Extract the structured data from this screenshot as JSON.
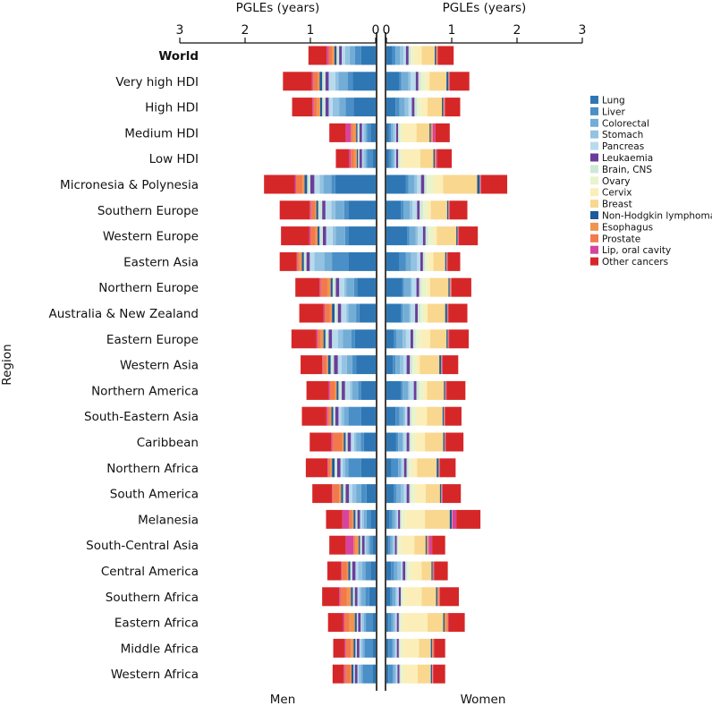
{
  "chart_data": {
    "type": "bar",
    "orientation": "horizontal",
    "stacked": true,
    "layout": "back-to-back",
    "top_axis_title": "PGLEs (years)",
    "ylabel": "Region",
    "panel_labels": {
      "men": "Men",
      "women": "Women"
    },
    "xlim": [
      0,
      3
    ],
    "ticks": [
      0,
      1,
      2,
      3
    ],
    "legend_position": "right",
    "categories": [
      "World",
      "Very high HDI",
      "High HDI",
      "Medium HDI",
      "Low HDI",
      "Micronesia & Polynesia",
      "Southern Europe",
      "Western Europe",
      "Eastern Asia",
      "Northern Europe",
      "Australia & New Zealand",
      "Eastern Europe",
      "Western Asia",
      "Northern America",
      "South-Eastern Asia",
      "Caribbean",
      "Northern Africa",
      "South America",
      "Melanesia",
      "South-Central Asia",
      "Central America",
      "Southern Africa",
      "Eastern Africa",
      "Middle Africa",
      "Western Africa"
    ],
    "bold_categories": [
      "World"
    ],
    "series": [
      {
        "name": "Lung",
        "color": "#2f77b4",
        "men": [
          0.22,
          0.35,
          0.34,
          0.08,
          0.05,
          0.62,
          0.42,
          0.42,
          0.42,
          0.28,
          0.25,
          0.32,
          0.3,
          0.22,
          0.22,
          0.18,
          0.22,
          0.14,
          0.08,
          0.05,
          0.08,
          0.1,
          0.05,
          0.05,
          0.05
        ],
        "women": [
          0.09,
          0.2,
          0.14,
          0.04,
          0.04,
          0.3,
          0.22,
          0.32,
          0.2,
          0.24,
          0.22,
          0.12,
          0.1,
          0.22,
          0.14,
          0.15,
          0.08,
          0.11,
          0.05,
          0.03,
          0.07,
          0.06,
          0.03,
          0.03,
          0.03
        ]
      },
      {
        "name": "Liver",
        "color": "#4a8fc7",
        "men": [
          0.1,
          0.08,
          0.12,
          0.05,
          0.08,
          0.06,
          0.06,
          0.05,
          0.25,
          0.05,
          0.05,
          0.05,
          0.06,
          0.05,
          0.2,
          0.05,
          0.2,
          0.08,
          0.06,
          0.04,
          0.08,
          0.06,
          0.1,
          0.12,
          0.15
        ],
        "women": [
          0.05,
          0.03,
          0.06,
          0.03,
          0.04,
          0.04,
          0.04,
          0.03,
          0.1,
          0.03,
          0.03,
          0.03,
          0.04,
          0.03,
          0.06,
          0.03,
          0.1,
          0.04,
          0.04,
          0.03,
          0.05,
          0.03,
          0.05,
          0.06,
          0.07
        ]
      },
      {
        "name": "Colorectal",
        "color": "#73add6",
        "men": [
          0.08,
          0.14,
          0.1,
          0.03,
          0.03,
          0.12,
          0.14,
          0.14,
          0.12,
          0.12,
          0.12,
          0.13,
          0.08,
          0.09,
          0.07,
          0.07,
          0.05,
          0.08,
          0.04,
          0.03,
          0.05,
          0.06,
          0.03,
          0.03,
          0.03
        ],
        "women": [
          0.07,
          0.11,
          0.08,
          0.03,
          0.03,
          0.09,
          0.1,
          0.1,
          0.08,
          0.1,
          0.1,
          0.1,
          0.07,
          0.08,
          0.06,
          0.07,
          0.04,
          0.07,
          0.04,
          0.03,
          0.05,
          0.05,
          0.03,
          0.03,
          0.03
        ]
      },
      {
        "name": "Stomach",
        "color": "#93c2e2",
        "men": [
          0.07,
          0.05,
          0.1,
          0.03,
          0.03,
          0.06,
          0.06,
          0.05,
          0.15,
          0.03,
          0.03,
          0.08,
          0.08,
          0.03,
          0.04,
          0.03,
          0.03,
          0.06,
          0.03,
          0.03,
          0.06,
          0.03,
          0.03,
          0.03,
          0.03
        ],
        "women": [
          0.05,
          0.03,
          0.06,
          0.03,
          0.02,
          0.04,
          0.04,
          0.03,
          0.09,
          0.02,
          0.02,
          0.05,
          0.05,
          0.02,
          0.03,
          0.02,
          0.02,
          0.05,
          0.03,
          0.02,
          0.05,
          0.02,
          0.03,
          0.02,
          0.02
        ]
      },
      {
        "name": "Pancreas",
        "color": "#b8dbec",
        "men": [
          0.05,
          0.1,
          0.06,
          0.02,
          0.02,
          0.08,
          0.09,
          0.1,
          0.07,
          0.08,
          0.08,
          0.09,
          0.06,
          0.08,
          0.04,
          0.05,
          0.04,
          0.05,
          0.03,
          0.02,
          0.04,
          0.03,
          0.02,
          0.02,
          0.02
        ],
        "women": [
          0.04,
          0.08,
          0.05,
          0.02,
          0.02,
          0.06,
          0.07,
          0.08,
          0.05,
          0.07,
          0.07,
          0.07,
          0.05,
          0.07,
          0.03,
          0.04,
          0.03,
          0.04,
          0.02,
          0.02,
          0.03,
          0.03,
          0.02,
          0.02,
          0.02
        ]
      },
      {
        "name": "Leukaemia",
        "color": "#6a3d9a",
        "men": [
          0.04,
          0.05,
          0.05,
          0.04,
          0.04,
          0.06,
          0.05,
          0.05,
          0.05,
          0.05,
          0.05,
          0.05,
          0.06,
          0.05,
          0.05,
          0.05,
          0.05,
          0.05,
          0.04,
          0.04,
          0.05,
          0.04,
          0.04,
          0.04,
          0.04
        ],
        "women": [
          0.04,
          0.04,
          0.04,
          0.03,
          0.03,
          0.05,
          0.04,
          0.04,
          0.04,
          0.04,
          0.04,
          0.04,
          0.05,
          0.04,
          0.04,
          0.04,
          0.04,
          0.04,
          0.03,
          0.03,
          0.04,
          0.03,
          0.03,
          0.03,
          0.03
        ]
      },
      {
        "name": "Brain, CNS",
        "color": "#cfe8d6",
        "men": [
          0.04,
          0.05,
          0.05,
          0.03,
          0.02,
          0.05,
          0.06,
          0.05,
          0.04,
          0.05,
          0.05,
          0.05,
          0.05,
          0.05,
          0.03,
          0.03,
          0.04,
          0.04,
          0.03,
          0.03,
          0.03,
          0.03,
          0.02,
          0.02,
          0.02
        ],
        "women": [
          0.03,
          0.04,
          0.04,
          0.02,
          0.02,
          0.04,
          0.05,
          0.04,
          0.03,
          0.04,
          0.04,
          0.04,
          0.04,
          0.04,
          0.03,
          0.03,
          0.03,
          0.03,
          0.02,
          0.02,
          0.03,
          0.02,
          0.02,
          0.02,
          0.02
        ]
      },
      {
        "name": "Ovary",
        "color": "#eaf4cc",
        "men": [
          0,
          0,
          0,
          0,
          0,
          0,
          0,
          0,
          0,
          0,
          0,
          0,
          0,
          0,
          0,
          0,
          0,
          0,
          0,
          0,
          0,
          0,
          0,
          0,
          0
        ],
        "women": [
          0.05,
          0.07,
          0.06,
          0.04,
          0.04,
          0.1,
          0.07,
          0.08,
          0.05,
          0.08,
          0.07,
          0.08,
          0.06,
          0.07,
          0.07,
          0.06,
          0.05,
          0.06,
          0.06,
          0.05,
          0.06,
          0.04,
          0.04,
          0.04,
          0.04
        ]
      },
      {
        "name": "Cervix",
        "color": "#fbeeb8",
        "men": [
          0,
          0,
          0,
          0,
          0,
          0,
          0,
          0,
          0,
          0,
          0,
          0,
          0,
          0,
          0,
          0,
          0,
          0,
          0,
          0,
          0,
          0,
          0,
          0,
          0
        ],
        "women": [
          0.12,
          0.06,
          0.1,
          0.22,
          0.28,
          0.15,
          0.05,
          0.05,
          0.08,
          0.05,
          0.04,
          0.14,
          0.05,
          0.05,
          0.16,
          0.15,
          0.08,
          0.16,
          0.3,
          0.2,
          0.16,
          0.26,
          0.38,
          0.25,
          0.22
        ]
      },
      {
        "name": "Breast",
        "color": "#f9d78f",
        "men": [
          0,
          0,
          0,
          0,
          0,
          0,
          0,
          0,
          0,
          0,
          0,
          0,
          0,
          0,
          0,
          0,
          0,
          0,
          0,
          0,
          0,
          0,
          0,
          0,
          0
        ],
        "women": [
          0.2,
          0.26,
          0.22,
          0.2,
          0.2,
          0.52,
          0.25,
          0.3,
          0.18,
          0.28,
          0.27,
          0.25,
          0.3,
          0.26,
          0.24,
          0.28,
          0.3,
          0.22,
          0.38,
          0.17,
          0.15,
          0.22,
          0.24,
          0.18,
          0.2
        ]
      },
      {
        "name": "Non-Hodgkin lymphoma",
        "color": "#1f5a9a",
        "men": [
          0.03,
          0.04,
          0.03,
          0.02,
          0.02,
          0.04,
          0.03,
          0.03,
          0.03,
          0.03,
          0.04,
          0.03,
          0.04,
          0.03,
          0.03,
          0.03,
          0.04,
          0.03,
          0.03,
          0.02,
          0.03,
          0.03,
          0.03,
          0.03,
          0.03
        ],
        "women": [
          0.02,
          0.03,
          0.02,
          0.02,
          0.02,
          0.04,
          0.02,
          0.02,
          0.02,
          0.02,
          0.03,
          0.02,
          0.03,
          0.02,
          0.02,
          0.02,
          0.03,
          0.02,
          0.03,
          0.02,
          0.02,
          0.02,
          0.02,
          0.02,
          0.02
        ]
      },
      {
        "name": "Esophagus",
        "color": "#f0954f",
        "men": [
          0.04,
          0.03,
          0.05,
          0.05,
          0.04,
          0.03,
          0.02,
          0.03,
          0.04,
          0.05,
          0.03,
          0.04,
          0.02,
          0.03,
          0.02,
          0.03,
          0.02,
          0.03,
          0.02,
          0.05,
          0.02,
          0.06,
          0.08,
          0.04,
          0.02
        ],
        "women": [
          0.02,
          0.01,
          0.02,
          0.03,
          0.02,
          0.01,
          0.01,
          0.01,
          0.01,
          0.02,
          0.01,
          0.01,
          0.01,
          0.01,
          0.01,
          0.01,
          0.01,
          0.01,
          0.01,
          0.03,
          0.01,
          0.03,
          0.05,
          0.02,
          0.01
        ]
      },
      {
        "name": "Prostate",
        "color": "#f27a4a",
        "men": [
          0.05,
          0.07,
          0.05,
          0.03,
          0.05,
          0.1,
          0.06,
          0.08,
          0.03,
          0.1,
          0.08,
          0.05,
          0.06,
          0.07,
          0.04,
          0.14,
          0.04,
          0.1,
          0.05,
          0.03,
          0.08,
          0.1,
          0.08,
          0.08,
          0.08
        ],
        "women": [
          0,
          0,
          0,
          0,
          0,
          0,
          0,
          0,
          0,
          0,
          0,
          0,
          0,
          0,
          0,
          0,
          0,
          0,
          0,
          0,
          0,
          0,
          0,
          0,
          0
        ]
      },
      {
        "name": "Lip, oral cavity",
        "color": "#d6449f",
        "men": [
          0.03,
          0.02,
          0.02,
          0.08,
          0.03,
          0.02,
          0.02,
          0.02,
          0.01,
          0.02,
          0.02,
          0.02,
          0.01,
          0.02,
          0.02,
          0.02,
          0.01,
          0.01,
          0.1,
          0.12,
          0.01,
          0.02,
          0.02,
          0.02,
          0.02
        ],
        "women": [
          0.01,
          0.01,
          0.01,
          0.04,
          0.02,
          0.01,
          0.01,
          0.01,
          0.01,
          0.01,
          0.01,
          0.01,
          0.01,
          0.01,
          0.01,
          0.01,
          0.01,
          0.01,
          0.06,
          0.05,
          0.01,
          0.01,
          0.01,
          0.01,
          0.01
        ]
      },
      {
        "name": "Other cancers",
        "color": "#d62728",
        "men": [
          0.28,
          0.44,
          0.31,
          0.25,
          0.2,
          0.47,
          0.46,
          0.43,
          0.26,
          0.37,
          0.37,
          0.38,
          0.33,
          0.34,
          0.37,
          0.33,
          0.33,
          0.3,
          0.25,
          0.25,
          0.21,
          0.26,
          0.23,
          0.17,
          0.17
        ],
        "women": [
          0.24,
          0.3,
          0.23,
          0.22,
          0.22,
          0.4,
          0.27,
          0.29,
          0.19,
          0.3,
          0.29,
          0.3,
          0.24,
          0.29,
          0.25,
          0.27,
          0.24,
          0.28,
          0.37,
          0.2,
          0.21,
          0.29,
          0.25,
          0.17,
          0.18
        ]
      }
    ]
  }
}
